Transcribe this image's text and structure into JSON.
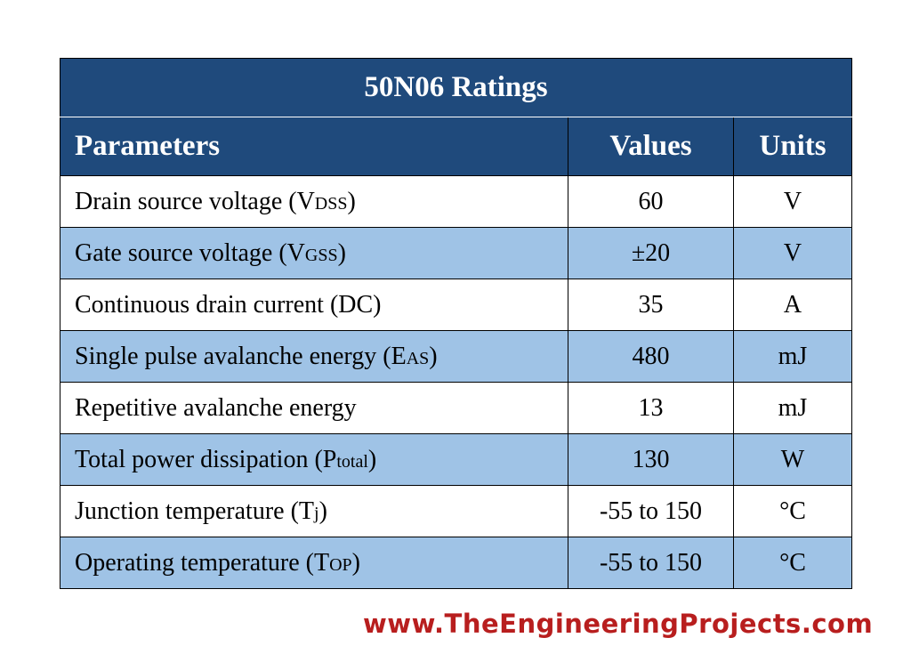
{
  "table": {
    "title": "50N06 Ratings",
    "headers": {
      "parameters": "Parameters",
      "values": "Values",
      "units": "Units"
    },
    "rows": [
      {
        "param": "Drain source voltage (V",
        "sub": "DSS",
        "suffix": ")",
        "value": "60",
        "unit": "V"
      },
      {
        "param": "Gate source voltage (V",
        "sub": "GSS",
        "suffix": ")",
        "value": "±20",
        "unit": "V"
      },
      {
        "param": "Continuous drain current (DC)",
        "sub": "",
        "suffix": "",
        "value": "35",
        "unit": "A"
      },
      {
        "param": "Single pulse avalanche energy (E",
        "sub": "AS",
        "suffix": ")",
        "value": "480",
        "unit": "mJ"
      },
      {
        "param": "Repetitive avalanche energy",
        "sub": "",
        "suffix": "",
        "value": "13",
        "unit": "mJ"
      },
      {
        "param": "Total power dissipation (P",
        "sub": "total",
        "suffix": ")",
        "value": "130",
        "unit": "W"
      },
      {
        "param": "Junction temperature (T",
        "sub": "j",
        "suffix": ")",
        "value": "-55 to 150",
        "unit": "°C"
      },
      {
        "param": "Operating temperature (T",
        "sub": "OP",
        "suffix": ")",
        "value": "-55 to 150",
        "unit": "°C"
      }
    ]
  },
  "footer": {
    "watermark": "www.TheEngineeringProjects.com"
  },
  "colors": {
    "header_bg": "#1f4a7c",
    "alt_row_bg": "#9fc3e6",
    "watermark": "#b81e1e"
  }
}
